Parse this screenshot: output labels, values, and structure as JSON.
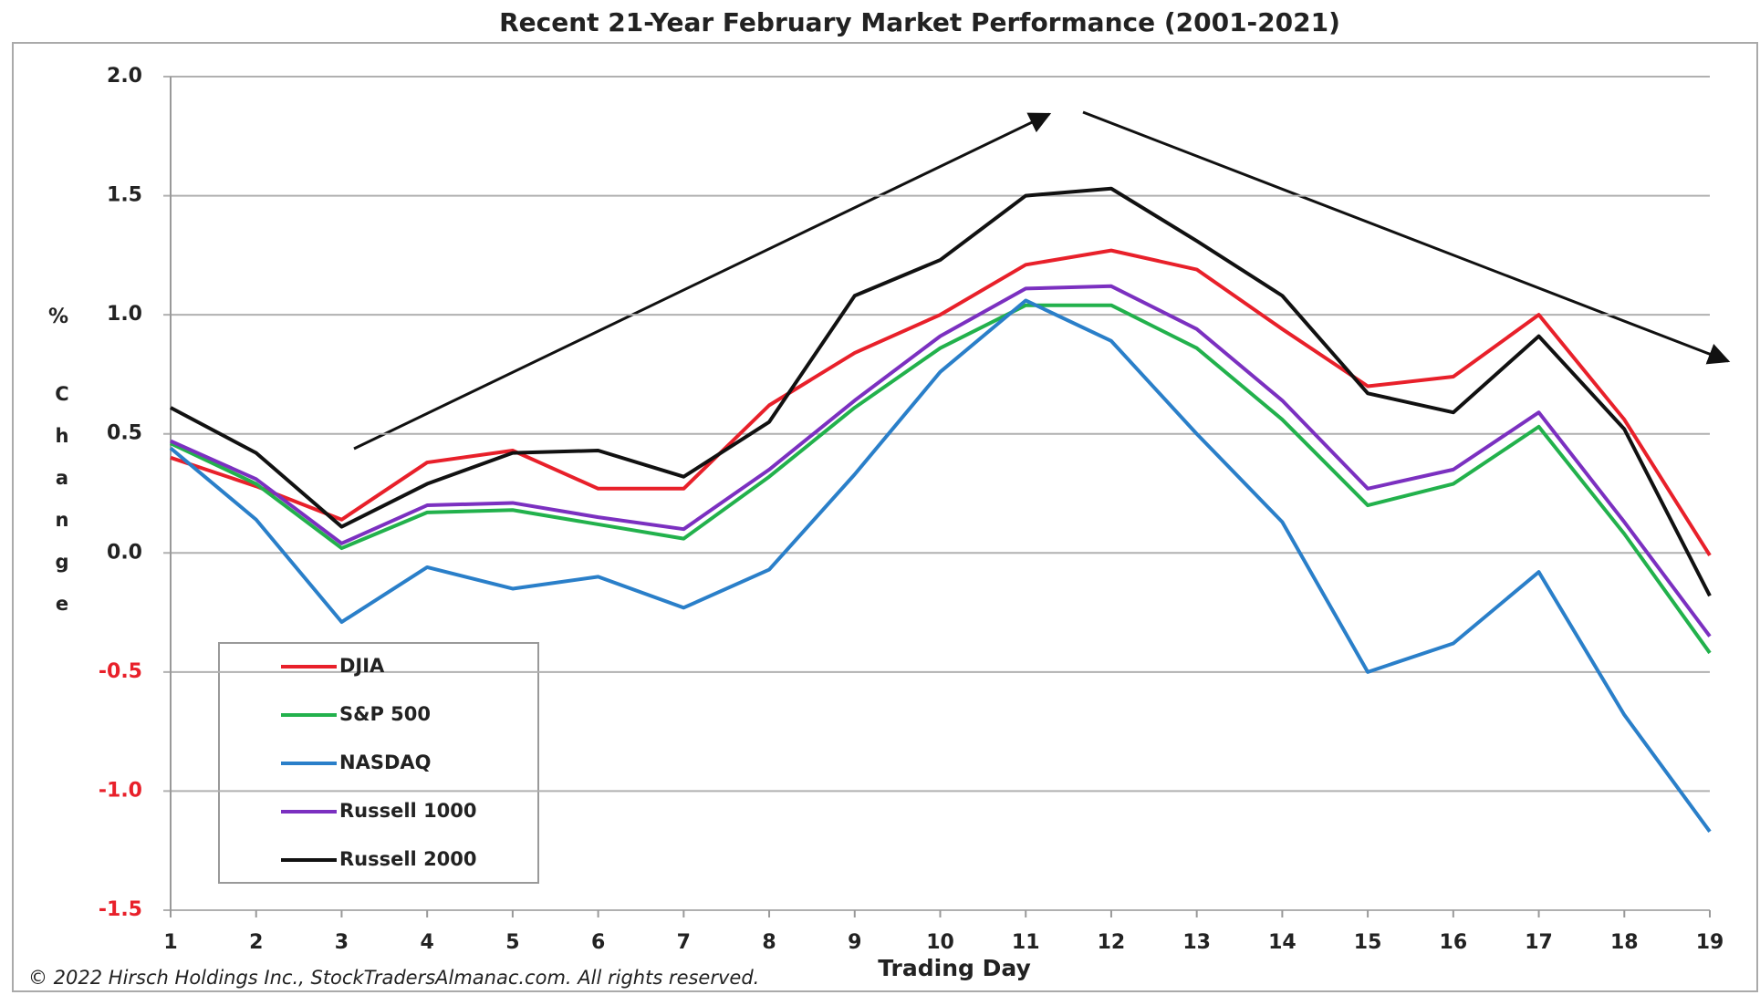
{
  "chart_data": {
    "type": "line",
    "title": "Recent 21-Year February Market Performance (2001-2021)",
    "ylabel_symbol": "%",
    "ylabel": "Change",
    "xlabel": "Trading Day",
    "copyright": "© 2022 Hirsch Holdings Inc., StockTradersAlmanac.com.  All rights reserved.",
    "x": [
      1,
      2,
      3,
      4,
      5,
      6,
      7,
      8,
      9,
      10,
      11,
      12,
      13,
      14,
      15,
      16,
      17,
      18,
      19
    ],
    "xlim": [
      1,
      19
    ],
    "xticks": [
      1,
      2,
      3,
      4,
      5,
      6,
      7,
      8,
      9,
      10,
      11,
      12,
      13,
      14,
      15,
      16,
      17,
      18,
      19
    ],
    "ylim": [
      -1.5,
      2.0
    ],
    "yticks": [
      {
        "value": 2.0,
        "label": "2.0"
      },
      {
        "value": 1.5,
        "label": "1.5"
      },
      {
        "value": 1.0,
        "label": "1.0"
      },
      {
        "value": 0.5,
        "label": "0.5"
      },
      {
        "value": 0.0,
        "label": "0.0"
      },
      {
        "value": -0.5,
        "label": "-0.5"
      },
      {
        "value": -1.0,
        "label": "-1.0"
      },
      {
        "value": -1.5,
        "label": "-1.5"
      }
    ],
    "grid": true,
    "legend": "lower-left",
    "series": [
      {
        "name": "DJIA",
        "color": "#e8202a",
        "values": [
          0.4,
          0.28,
          0.14,
          0.38,
          0.43,
          0.27,
          0.27,
          0.62,
          0.84,
          1.0,
          1.21,
          1.27,
          1.19,
          0.94,
          0.7,
          0.74,
          1.0,
          0.56,
          -0.01
        ]
      },
      {
        "name": "S&P 500",
        "color": "#22b14c",
        "values": [
          0.46,
          0.29,
          0.02,
          0.17,
          0.18,
          0.12,
          0.06,
          0.32,
          0.61,
          0.86,
          1.04,
          1.04,
          0.86,
          0.56,
          0.2,
          0.29,
          0.53,
          0.08,
          -0.42
        ]
      },
      {
        "name": "NASDAQ",
        "color": "#2a7fc9",
        "values": [
          0.44,
          0.14,
          -0.29,
          -0.06,
          -0.15,
          -0.1,
          -0.23,
          -0.07,
          0.33,
          0.76,
          1.06,
          0.89,
          0.5,
          0.13,
          -0.5,
          -0.38,
          -0.08,
          -0.68,
          -1.17
        ]
      },
      {
        "name": "Russell 1000",
        "color": "#7b30c0",
        "values": [
          0.47,
          0.31,
          0.04,
          0.2,
          0.21,
          0.15,
          0.1,
          0.35,
          0.64,
          0.91,
          1.11,
          1.12,
          0.94,
          0.64,
          0.27,
          0.35,
          0.59,
          0.13,
          -0.35
        ]
      },
      {
        "name": "Russell 2000",
        "color": "#111111",
        "values": [
          0.61,
          0.42,
          0.11,
          0.29,
          0.42,
          0.43,
          0.32,
          0.55,
          1.08,
          1.23,
          1.5,
          1.53,
          1.31,
          1.08,
          0.67,
          0.59,
          0.91,
          0.52,
          -0.18
        ]
      }
    ]
  }
}
